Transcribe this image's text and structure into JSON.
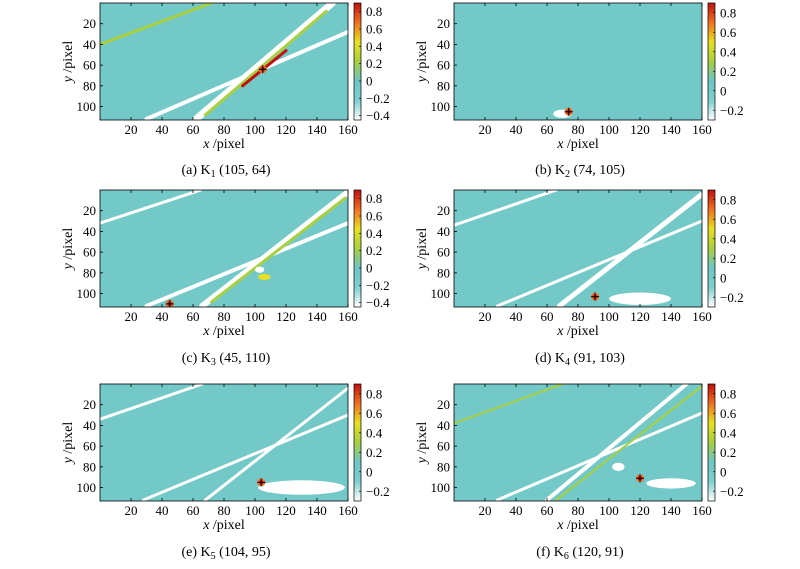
{
  "colors": {
    "background_field": "#73c8c8",
    "line_white": "#ffffff",
    "colormap": [
      "#ffffff",
      "#7fd0d0",
      "#6cc6c6",
      "#a8d040",
      "#e8e020",
      "#f07020",
      "#c01010"
    ]
  },
  "chart_data": [
    {
      "type": "heatmap",
      "caption": "(a) K",
      "caption_sub": "1",
      "caption_coords": "(105, 64)",
      "xlabel": "x",
      "xunit": "/pixel",
      "ylabel": "y",
      "yunit": "/pixel",
      "xlim": [
        0,
        160
      ],
      "ylim": [
        0,
        113
      ],
      "xticks": [
        20,
        40,
        60,
        80,
        100,
        120,
        140,
        160
      ],
      "yticks": [
        20,
        40,
        60,
        80,
        100
      ],
      "colorbar_ticks": [
        0.8,
        0.6,
        0.4,
        0.2,
        0,
        -0.2,
        -0.4
      ],
      "colorbar_tick_labels": [
        "0.8",
        "0.6",
        "0.4",
        "0.2",
        "0",
        "−0.2",
        "−0.4"
      ],
      "clim": [
        -0.45,
        0.9
      ],
      "peak": {
        "x": 105,
        "y": 64
      },
      "lines": [
        {
          "x1": 0,
          "y1": 40,
          "x2": 72,
          "y2": 0,
          "color": "#a8d040",
          "width": 3
        },
        {
          "x1": 30,
          "y1": 112,
          "x2": 160,
          "y2": 28,
          "color": "#ffffff",
          "width": 4
        },
        {
          "x1": 62,
          "y1": 112,
          "x2": 150,
          "y2": 0,
          "color": "#ffffff",
          "width": 7
        },
        {
          "x1": 68,
          "y1": 108,
          "x2": 146,
          "y2": 8,
          "color": "#a8d040",
          "width": 3
        },
        {
          "x1": 92,
          "y1": 80,
          "x2": 120,
          "y2": 46,
          "color": "#c01010",
          "width": 3
        }
      ],
      "blobs": []
    },
    {
      "type": "heatmap",
      "caption": "(b) K",
      "caption_sub": "2",
      "caption_coords": "(74, 105)",
      "xlabel": "x",
      "xunit": "/pixel",
      "ylabel": "y",
      "yunit": "/pixel",
      "xlim": [
        0,
        160
      ],
      "ylim": [
        0,
        113
      ],
      "xticks": [
        20,
        40,
        60,
        80,
        100,
        120,
        140,
        160
      ],
      "yticks": [
        20,
        40,
        60,
        80,
        100
      ],
      "colorbar_ticks": [
        0.8,
        0.6,
        0.4,
        0.2,
        0,
        -0.2
      ],
      "colorbar_tick_labels": [
        "0.8",
        "0.6",
        "0.4",
        "0.2",
        "0",
        "−0.2"
      ],
      "clim": [
        -0.3,
        0.9
      ],
      "peak": {
        "x": 74,
        "y": 105
      },
      "lines": [],
      "blobs": [
        {
          "x": 70,
          "y": 107,
          "rx": 6,
          "ry": 4,
          "color": "#ffffff"
        }
      ]
    },
    {
      "type": "heatmap",
      "caption": "(c) K",
      "caption_sub": "3",
      "caption_coords": "(45, 110)",
      "xlabel": "x",
      "xunit": "/pixel",
      "ylabel": "y",
      "yunit": "/pixel",
      "xlim": [
        0,
        160
      ],
      "ylim": [
        0,
        113
      ],
      "xticks": [
        20,
        40,
        60,
        80,
        100,
        120,
        140,
        160
      ],
      "yticks": [
        20,
        40,
        60,
        80,
        100
      ],
      "colorbar_ticks": [
        0.8,
        0.6,
        0.4,
        0.2,
        0,
        -0.2,
        -0.4
      ],
      "colorbar_tick_labels": [
        "0.8",
        "0.6",
        "0.4",
        "0.2",
        "0",
        "−0.2",
        "−0.4"
      ],
      "clim": [
        -0.45,
        0.9
      ],
      "peak": {
        "x": 45,
        "y": 110
      },
      "lines": [
        {
          "x1": 0,
          "y1": 32,
          "x2": 65,
          "y2": 0,
          "color": "#ffffff",
          "width": 3
        },
        {
          "x1": 30,
          "y1": 112,
          "x2": 160,
          "y2": 32,
          "color": "#ffffff",
          "width": 4
        },
        {
          "x1": 66,
          "y1": 112,
          "x2": 160,
          "y2": 2,
          "color": "#ffffff",
          "width": 6
        },
        {
          "x1": 72,
          "y1": 108,
          "x2": 158,
          "y2": 8,
          "color": "#a8d040",
          "width": 3
        }
      ],
      "blobs": [
        {
          "x": 106,
          "y": 84,
          "rx": 4,
          "ry": 3,
          "color": "#e8e020"
        },
        {
          "x": 103,
          "y": 77,
          "rx": 3,
          "ry": 3,
          "color": "#ffffff"
        }
      ]
    },
    {
      "type": "heatmap",
      "caption": "(d) K",
      "caption_sub": "4",
      "caption_coords": "(91, 103)",
      "xlabel": "x",
      "xunit": "/pixel",
      "ylabel": "y",
      "yunit": "/pixel",
      "xlim": [
        0,
        160
      ],
      "ylim": [
        0,
        113
      ],
      "xticks": [
        20,
        40,
        60,
        80,
        100,
        120,
        140,
        160
      ],
      "yticks": [
        20,
        40,
        60,
        80,
        100
      ],
      "colorbar_ticks": [
        0.8,
        0.6,
        0.4,
        0.2,
        0,
        -0.2
      ],
      "colorbar_tick_labels": [
        "0.8",
        "0.6",
        "0.4",
        "0.2",
        "0",
        "−0.2"
      ],
      "clim": [
        -0.3,
        0.9
      ],
      "peak": {
        "x": 91,
        "y": 103
      },
      "lines": [
        {
          "x1": 0,
          "y1": 34,
          "x2": 66,
          "y2": 0,
          "color": "#ffffff",
          "width": 3
        },
        {
          "x1": 28,
          "y1": 112,
          "x2": 160,
          "y2": 30,
          "color": "#ffffff",
          "width": 3
        },
        {
          "x1": 68,
          "y1": 112,
          "x2": 160,
          "y2": 4,
          "color": "#ffffff",
          "width": 5
        }
      ],
      "blobs": [
        {
          "x": 120,
          "y": 105,
          "rx": 20,
          "ry": 6,
          "color": "#ffffff"
        }
      ]
    },
    {
      "type": "heatmap",
      "caption": "(e) K",
      "caption_sub": "5",
      "caption_coords": "(104, 95)",
      "xlabel": "x",
      "xunit": "/pixel",
      "ylabel": "y",
      "yunit": "/pixel",
      "xlim": [
        0,
        160
      ],
      "ylim": [
        0,
        113
      ],
      "xticks": [
        20,
        40,
        60,
        80,
        100,
        120,
        140,
        160
      ],
      "yticks": [
        20,
        40,
        60,
        80,
        100
      ],
      "colorbar_ticks": [
        0.8,
        0.6,
        0.4,
        0.2,
        0,
        -0.2
      ],
      "colorbar_tick_labels": [
        "0.8",
        "0.6",
        "0.4",
        "0.2",
        "0",
        "−0.2"
      ],
      "clim": [
        -0.3,
        0.9
      ],
      "peak": {
        "x": 104,
        "y": 95
      },
      "lines": [
        {
          "x1": 0,
          "y1": 34,
          "x2": 66,
          "y2": 0,
          "color": "#ffffff",
          "width": 3
        },
        {
          "x1": 28,
          "y1": 112,
          "x2": 160,
          "y2": 30,
          "color": "#ffffff",
          "width": 3
        },
        {
          "x1": 68,
          "y1": 112,
          "x2": 160,
          "y2": 4,
          "color": "#ffffff",
          "width": 3
        }
      ],
      "blobs": [
        {
          "x": 130,
          "y": 100,
          "rx": 28,
          "ry": 7,
          "color": "#ffffff"
        }
      ]
    },
    {
      "type": "heatmap",
      "caption": "(f) K",
      "caption_sub": "6",
      "caption_coords": "(120, 91)",
      "xlabel": "x",
      "xunit": "/pixel",
      "ylabel": "y",
      "yunit": "/pixel",
      "xlim": [
        0,
        160
      ],
      "ylim": [
        0,
        113
      ],
      "xticks": [
        20,
        40,
        60,
        80,
        100,
        120,
        140,
        160
      ],
      "yticks": [
        20,
        40,
        60,
        80,
        100
      ],
      "colorbar_ticks": [
        0.8,
        0.6,
        0.4,
        0.2,
        0,
        -0.2
      ],
      "colorbar_tick_labels": [
        "0.8",
        "0.6",
        "0.4",
        "0.2",
        "0",
        "−0.2"
      ],
      "clim": [
        -0.3,
        0.9
      ],
      "peak": {
        "x": 120,
        "y": 91
      },
      "lines": [
        {
          "x1": 0,
          "y1": 38,
          "x2": 70,
          "y2": 0,
          "color": "#a8d040",
          "width": 2
        },
        {
          "x1": 28,
          "y1": 112,
          "x2": 160,
          "y2": 28,
          "color": "#ffffff",
          "width": 3
        },
        {
          "x1": 66,
          "y1": 112,
          "x2": 160,
          "y2": 2,
          "color": "#a8d040",
          "width": 2
        },
        {
          "x1": 60,
          "y1": 112,
          "x2": 150,
          "y2": 0,
          "color": "#ffffff",
          "width": 4
        }
      ],
      "blobs": [
        {
          "x": 106,
          "y": 80,
          "rx": 4,
          "ry": 4,
          "color": "#ffffff"
        },
        {
          "x": 140,
          "y": 96,
          "rx": 16,
          "ry": 5,
          "color": "#ffffff"
        }
      ]
    }
  ]
}
